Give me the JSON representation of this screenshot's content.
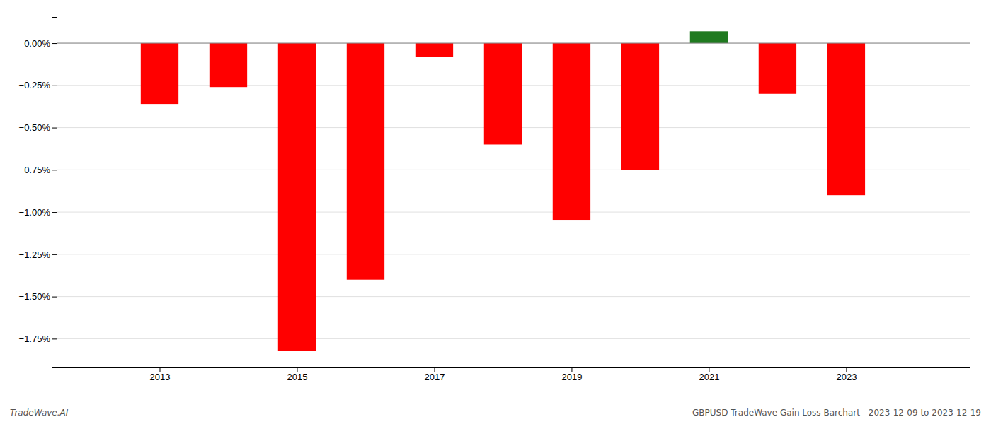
{
  "chart_data": {
    "type": "bar",
    "x": [
      2013,
      2014,
      2015,
      2016,
      2017,
      2018,
      2019,
      2020,
      2021,
      2022,
      2023
    ],
    "values": [
      -0.36,
      -0.26,
      -1.82,
      -1.4,
      -0.08,
      -0.6,
      -1.05,
      -0.75,
      0.07,
      -0.3,
      -0.9
    ],
    "colors": [
      "#ff0000",
      "#ff0000",
      "#ff0000",
      "#ff0000",
      "#ff0000",
      "#ff0000",
      "#ff0000",
      "#ff0000",
      "#1f7a1f",
      "#ff0000",
      "#ff0000"
    ],
    "xlim": [
      2011.5,
      2024.8
    ],
    "xticks": [
      2013,
      2015,
      2017,
      2019,
      2021,
      2023
    ],
    "ylim": [
      -1.92,
      0.155
    ],
    "yticks": [
      {
        "value": 0.0,
        "label": "0.00%"
      },
      {
        "value": -0.25,
        "label": "−0.25%"
      },
      {
        "value": -0.5,
        "label": "−0.50%"
      },
      {
        "value": -0.75,
        "label": "−0.75%"
      },
      {
        "value": -1.0,
        "label": "−1.00%"
      },
      {
        "value": -1.25,
        "label": "−1.25%"
      },
      {
        "value": -1.5,
        "label": "−1.50%"
      },
      {
        "value": -1.75,
        "label": "−1.75%"
      }
    ],
    "grid": true,
    "annotations": [
      "TradeWave.AI",
      "GBPUSD TradeWave Gain Loss Barchart - 2023-12-09 to 2023-12-19"
    ]
  }
}
